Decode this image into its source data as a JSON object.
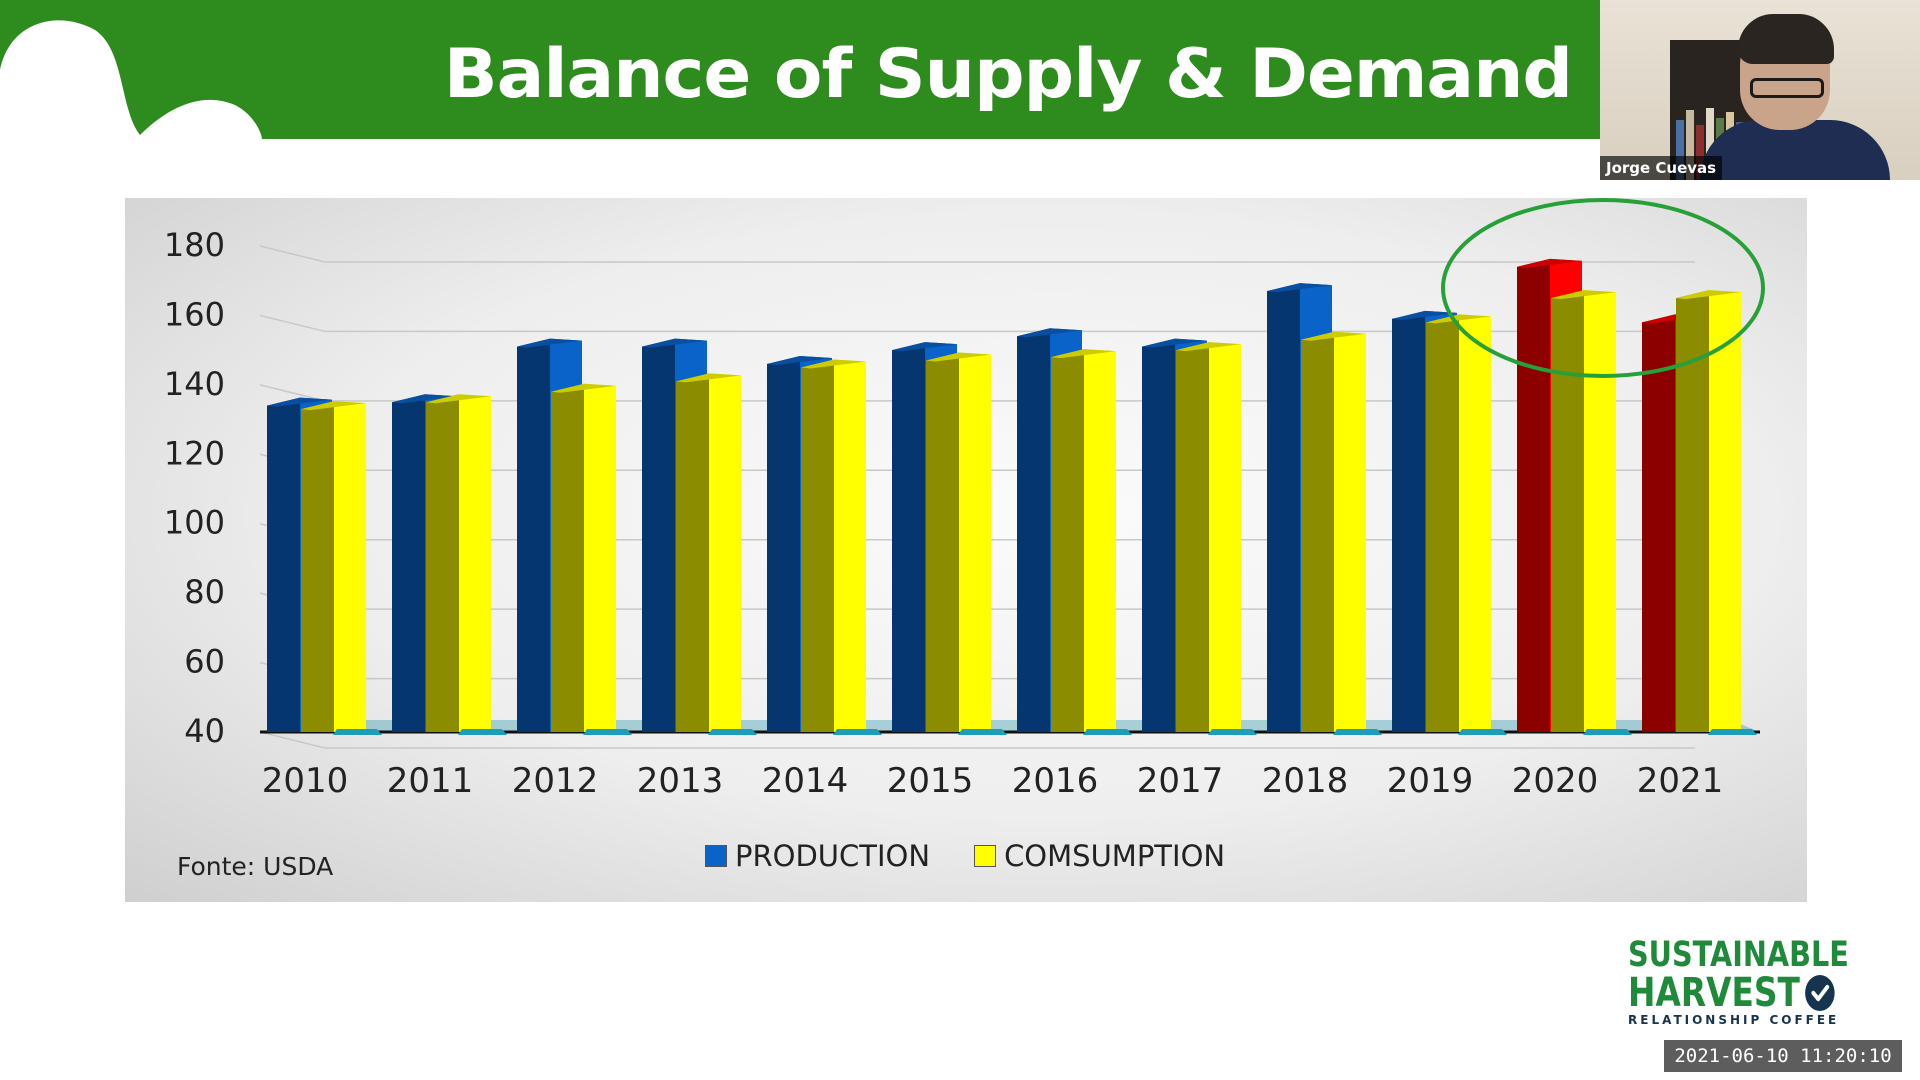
{
  "slide": {
    "title": "Balance of Supply & Demand",
    "header_color": "#2e8b1e"
  },
  "chart_data": {
    "type": "bar",
    "title": "Balance of Supply & Demand",
    "categories": [
      "2010",
      "2011",
      "2012",
      "2013",
      "2014",
      "2015",
      "2016",
      "2017",
      "2018",
      "2019",
      "2020",
      "2021"
    ],
    "series": [
      {
        "name": "PRODUCTION",
        "color": "#0a63c9",
        "values": [
          134,
          135,
          151,
          151,
          146,
          150,
          154,
          151,
          167,
          159,
          174,
          158
        ]
      },
      {
        "name": "COMSUMPTION",
        "color": "#ffff00",
        "values": [
          133,
          135,
          138,
          141,
          145,
          147,
          148,
          150,
          153,
          158,
          165,
          165
        ]
      }
    ],
    "highlight_color": "#ff0000",
    "highlighted_production_years": [
      "2020",
      "2021"
    ],
    "yticks": [
      "180",
      "160",
      "140",
      "120",
      "100",
      "80",
      "60",
      "40"
    ],
    "ylim": [
      40,
      180
    ],
    "legend": [
      "PRODUCTION",
      "COMSUMPTION"
    ],
    "legend_position": "bottom",
    "annotation": "green ellipse around 2020 and 2021",
    "source_note": "Fonte:  USDA",
    "grid": true
  },
  "webcam": {
    "participant_name": "Jorge Cuevas"
  },
  "logo": {
    "line1": "SUSTAINABLE",
    "line2": "HARVEST",
    "tagline": "RELATIONSHIP COFFEE"
  },
  "timestamp": "2021-06-10 11:20:10"
}
